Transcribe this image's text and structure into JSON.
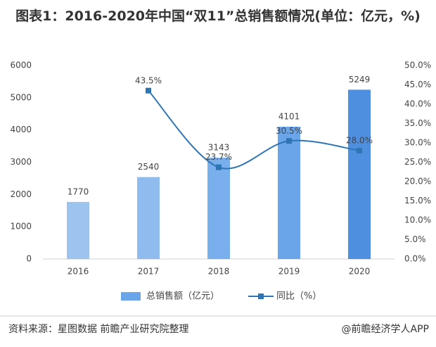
{
  "chart_data": {
    "type": "bar",
    "title": "图表1：2016-2020年中国“双11”总销售额情况(单位：亿元，%)",
    "categories": [
      "2016",
      "2017",
      "2018",
      "2019",
      "2020"
    ],
    "series": [
      {
        "name": "总销售额（亿元）",
        "type": "bar",
        "color": "#6aa5ea",
        "colors": [
          "#9dc3ef",
          "#8fbbef",
          "#7aafed",
          "#6aa5ea",
          "#4f8fe0"
        ],
        "values": [
          1770,
          2540,
          3143,
          4101,
          5249
        ]
      },
      {
        "name": "同比（%）",
        "type": "line",
        "axis": "y2",
        "color": "#2e75b6",
        "values": [
          null,
          43.5,
          23.7,
          30.5,
          28.0
        ],
        "value_labels": [
          null,
          "43.5%",
          "23.7%",
          "30.5%",
          "28.0%"
        ]
      }
    ],
    "ylim": [
      0,
      6000
    ],
    "yticks": [
      0,
      1000,
      2000,
      3000,
      4000,
      5000,
      6000
    ],
    "y2lim": [
      0,
      50
    ],
    "y2ticks": [
      {
        "value": 0,
        "label": "0.0%"
      },
      {
        "value": 5,
        "label": "5.0%"
      },
      {
        "value": 10,
        "label": "10.0%"
      },
      {
        "value": 15,
        "label": "15.0%"
      },
      {
        "value": 20,
        "label": "20.0%"
      },
      {
        "value": 25,
        "label": "25.0%"
      },
      {
        "value": 30,
        "label": "30.0%"
      },
      {
        "value": 35,
        "label": "35.0%"
      },
      {
        "value": 40,
        "label": "40.0%"
      },
      {
        "value": 45,
        "label": "45.0%"
      },
      {
        "value": 50,
        "label": "50.0%"
      }
    ],
    "source": "资料来源：星图数据 前瞻产业研究院整理",
    "credit": "@前瞻经济学人APP"
  }
}
